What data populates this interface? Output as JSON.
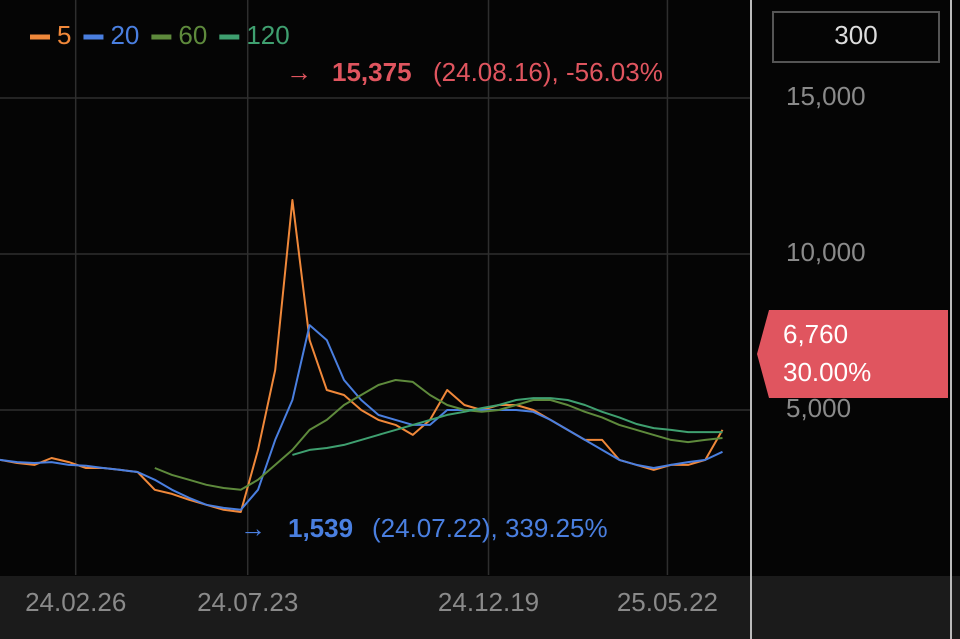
{
  "chart_data": {
    "type": "line",
    "period_button": "300",
    "x": [
      0,
      10,
      20,
      30,
      40,
      50,
      60,
      70,
      80,
      90,
      100,
      110,
      120,
      130,
      140,
      150,
      160,
      170,
      180,
      190,
      200,
      210,
      220,
      230,
      240,
      250,
      260,
      270,
      280,
      290,
      300,
      310,
      320,
      330,
      340,
      350,
      360,
      370,
      380,
      390,
      400,
      410,
      420
    ],
    "xlim": [
      0,
      436
    ],
    "xticks": [
      {
        "value": 44,
        "label": "24.02.26"
      },
      {
        "value": 144,
        "label": "24.07.23"
      },
      {
        "value": 284,
        "label": "24.12.19"
      },
      {
        "value": 388,
        "label": "25.05.22"
      }
    ],
    "ylim": [
      -290,
      18140
    ],
    "yticks": [
      {
        "value": 5000,
        "label": "5,000"
      },
      {
        "value": 10000,
        "label": "10,000"
      },
      {
        "value": 15000,
        "label": "15,000"
      }
    ],
    "grid": true,
    "series": [
      {
        "name": "5",
        "color": "#f0883a",
        "values": [
          3400,
          3300,
          3240,
          3460,
          3330,
          3140,
          3140,
          3080,
          3010,
          2440,
          2310,
          2120,
          1960,
          1800,
          1730,
          3720,
          6280,
          11730,
          7240,
          5640,
          5480,
          5000,
          4680,
          4520,
          4200,
          4680,
          5640,
          5160,
          5000,
          5160,
          5160,
          5000,
          4680,
          4360,
          4040,
          4040,
          3400,
          3240,
          3080,
          3240,
          3240,
          3400,
          4360
        ]
      },
      {
        "name": "20",
        "color": "#4a7fe0",
        "values": [
          3400,
          3330,
          3300,
          3330,
          3240,
          3210,
          3140,
          3080,
          3010,
          2760,
          2440,
          2180,
          1960,
          1860,
          1800,
          2440,
          4040,
          5320,
          7720,
          7240,
          5960,
          5320,
          4840,
          4680,
          4520,
          4520,
          5000,
          5000,
          5000,
          5000,
          5000,
          4940,
          4680,
          4360,
          4040,
          3720,
          3400,
          3240,
          3140,
          3240,
          3330,
          3400,
          3660
        ]
      },
      {
        "name": "60",
        "color": "#5e8a3c",
        "values": [
          null,
          null,
          null,
          null,
          null,
          null,
          null,
          null,
          null,
          3140,
          2920,
          2760,
          2600,
          2500,
          2440,
          2760,
          3240,
          3720,
          4360,
          4680,
          5160,
          5480,
          5800,
          5960,
          5900,
          5480,
          5160,
          5000,
          4940,
          5000,
          5160,
          5320,
          5320,
          5160,
          4940,
          4760,
          4520,
          4360,
          4200,
          4040,
          3970,
          4040,
          4100
        ]
      },
      {
        "name": "120",
        "color": "#3fa070",
        "values": [
          null,
          null,
          null,
          null,
          null,
          null,
          null,
          null,
          null,
          null,
          null,
          null,
          null,
          null,
          null,
          null,
          null,
          3560,
          3720,
          3780,
          3880,
          4040,
          4200,
          4360,
          4520,
          4680,
          4840,
          4940,
          5060,
          5160,
          5320,
          5380,
          5380,
          5320,
          5160,
          4940,
          4760,
          4550,
          4420,
          4360,
          4290,
          4290,
          4290
        ]
      }
    ],
    "high_annotation": {
      "price": "15,375",
      "detail": "(24.08.16), -56.03%"
    },
    "low_annotation": {
      "price": "1,539",
      "detail": "(24.07.22), 339.25%"
    },
    "current_price": "6,760",
    "current_change": "30.00%"
  }
}
